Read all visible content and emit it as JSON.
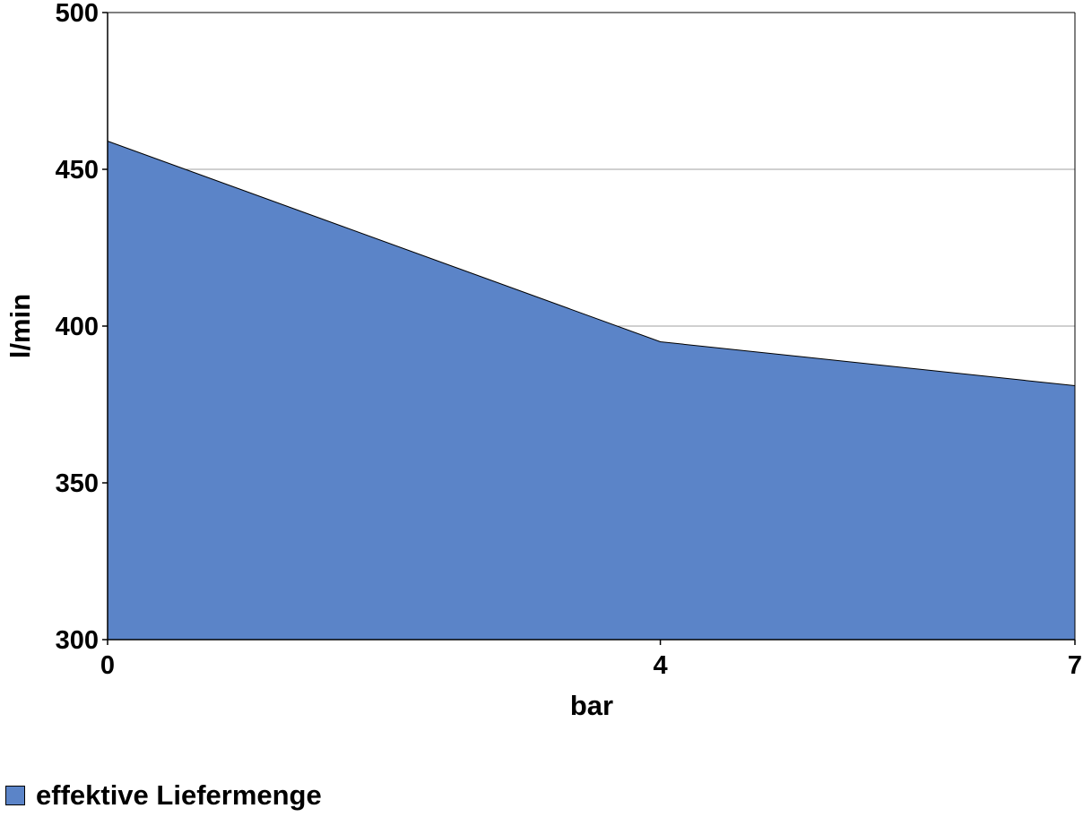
{
  "chart_data": {
    "type": "area",
    "xlabel": "bar",
    "ylabel": "l/min",
    "x": [
      0,
      4,
      7
    ],
    "x_tick_labels": [
      "0",
      "4",
      "7"
    ],
    "y_ticks": [
      300,
      350,
      400,
      450,
      500
    ],
    "y_tick_labels": [
      "300",
      "350",
      "400",
      "450",
      "500"
    ],
    "ylim": [
      300,
      500
    ],
    "grid": "horizontal",
    "legend_position": "bottom-left",
    "series": [
      {
        "name": "effektive Liefermenge",
        "values": [
          459,
          395,
          381
        ],
        "color": "#5b84c8"
      }
    ]
  }
}
